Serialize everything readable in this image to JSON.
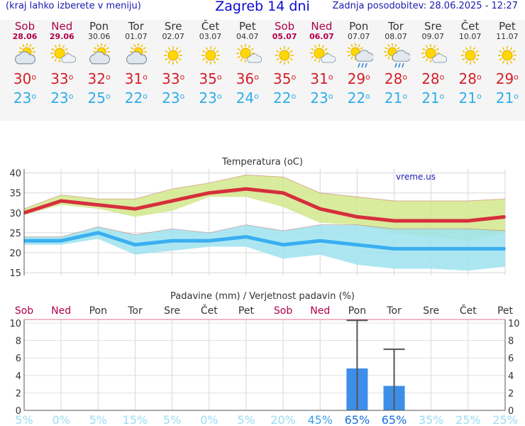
{
  "header": {
    "note": "(kraj lahko izberete v meniju)",
    "title": "Zagreb 14 dni",
    "updated": "Zadnja posodobitev: 28.06.2025 - 12:27"
  },
  "days": [
    {
      "name": "Sob",
      "date": "28.06",
      "weekend": true,
      "icon": "sun-cloud-icon",
      "max": "30",
      "min": "23"
    },
    {
      "name": "Ned",
      "date": "29.06",
      "weekend": true,
      "icon": "sun-small-cloud-icon",
      "max": "33",
      "min": "23"
    },
    {
      "name": "Pon",
      "date": "30.06",
      "weekend": false,
      "icon": "sun-cloud-icon",
      "max": "32",
      "min": "25"
    },
    {
      "name": "Tor",
      "date": "01.07",
      "weekend": false,
      "icon": "sun-cloud-icon",
      "max": "31",
      "min": "22"
    },
    {
      "name": "Sre",
      "date": "02.07",
      "weekend": false,
      "icon": "sun-icon",
      "max": "33",
      "min": "23"
    },
    {
      "name": "Čet",
      "date": "03.07",
      "weekend": false,
      "icon": "sun-icon",
      "max": "35",
      "min": "23"
    },
    {
      "name": "Pet",
      "date": "04.07",
      "weekend": false,
      "icon": "sun-small-cloud-icon",
      "max": "36",
      "min": "24"
    },
    {
      "name": "Sob",
      "date": "05.07",
      "weekend": true,
      "icon": "sun-icon",
      "max": "35",
      "min": "22"
    },
    {
      "name": "Ned",
      "date": "06.07",
      "weekend": true,
      "icon": "sun-small-cloud-icon",
      "max": "31",
      "min": "23"
    },
    {
      "name": "Pon",
      "date": "07.07",
      "weekend": false,
      "icon": "sun-rain-icon",
      "max": "29",
      "min": "22"
    },
    {
      "name": "Tor",
      "date": "08.07",
      "weekend": false,
      "icon": "sun-rain-icon",
      "max": "28",
      "min": "21"
    },
    {
      "name": "Sre",
      "date": "09.07",
      "weekend": false,
      "icon": "sun-small-cloud-icon",
      "max": "28",
      "min": "21"
    },
    {
      "name": "Čet",
      "date": "10.07",
      "weekend": false,
      "icon": "sun-icon",
      "max": "28",
      "min": "21"
    },
    {
      "name": "Pet",
      "date": "11.07",
      "weekend": false,
      "icon": "sun-icon",
      "max": "29",
      "min": "21"
    }
  ],
  "degree_sign": "o",
  "chart_data": [
    {
      "type": "line",
      "title": "Temperatura (oC)",
      "watermark": "vreme.us",
      "categories": [
        "Sob",
        "Ned",
        "Pon",
        "Tor",
        "Sre",
        "Čet",
        "Pet",
        "Sob",
        "Ned",
        "Pon",
        "Tor",
        "Sre",
        "Čet",
        "Pet"
      ],
      "series": [
        {
          "name": "max",
          "color": "#d62f3c",
          "values": [
            30,
            33,
            32,
            31,
            33,
            35,
            36,
            35,
            31,
            29,
            28,
            28,
            28,
            29
          ]
        },
        {
          "name": "min",
          "color": "#3aaff0",
          "values": [
            23,
            23,
            25,
            22,
            23,
            23,
            24,
            22,
            23,
            22,
            21,
            21,
            21,
            21
          ]
        }
      ],
      "max_band": {
        "color": "#d2e88c",
        "upper": [
          31,
          34.5,
          33.5,
          33.5,
          36,
          37.5,
          39.5,
          39,
          35,
          34,
          33,
          33,
          33,
          33.5
        ],
        "lower": [
          29.5,
          32,
          31,
          29,
          30.5,
          34,
          34,
          31.5,
          27.5,
          27,
          25,
          24,
          23,
          25
        ]
      },
      "min_band": {
        "color": "#9ee3ee",
        "upper": [
          24,
          24,
          26.5,
          24.5,
          26,
          25,
          27,
          25.5,
          27,
          27,
          26,
          26,
          26,
          25.5
        ],
        "lower": [
          22,
          22,
          23.5,
          19.5,
          20.5,
          21.5,
          21.5,
          18.5,
          19.5,
          17,
          16,
          16,
          15.5,
          16.5
        ]
      },
      "yticks": [
        15,
        20,
        25,
        30,
        35,
        40
      ],
      "ylim": [
        14.3,
        41
      ]
    },
    {
      "type": "bar",
      "title": "Padavine (mm) / Verjetnost padavin (%)",
      "categories": [
        "Sob",
        "Ned",
        "Pon",
        "Tor",
        "Sre",
        "Čet",
        "Pet",
        "Sob",
        "Ned",
        "Pon",
        "Tor",
        "Sre",
        "Čet",
        "Pet"
      ],
      "weekend": [
        true,
        true,
        false,
        false,
        false,
        false,
        false,
        true,
        true,
        false,
        false,
        false,
        false,
        false
      ],
      "values": [
        0,
        0,
        0,
        0,
        0,
        0,
        0,
        0,
        0,
        4.8,
        2.8,
        0,
        0,
        0
      ],
      "max_values": [
        0,
        0,
        0,
        0,
        0,
        0,
        0,
        0,
        0,
        10.3,
        7.0,
        0,
        0,
        0
      ],
      "probability": [
        "5%",
        "0%",
        "5%",
        "15%",
        "5%",
        "0%",
        "5%",
        "20%",
        "45%",
        "65%",
        "65%",
        "35%",
        "25%",
        "25%"
      ],
      "bar_color": "#3d8ee8",
      "yticks": [
        0,
        2,
        4,
        6,
        8,
        10
      ],
      "ylim": [
        0,
        10.4
      ]
    }
  ]
}
